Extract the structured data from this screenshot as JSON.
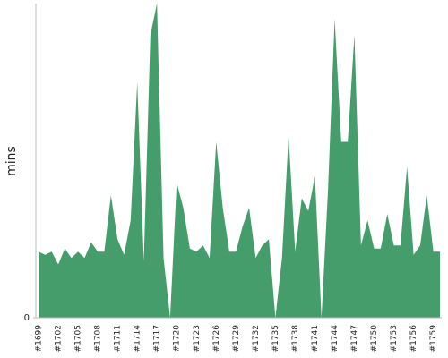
{
  "chart_data": {
    "type": "area",
    "y_label": "mins",
    "categories": [
      "#1699",
      null,
      null,
      "#1702",
      null,
      null,
      "#1705",
      null,
      null,
      "#1708",
      null,
      null,
      "#1711",
      null,
      null,
      "#1714",
      null,
      null,
      "#1717",
      null,
      null,
      "#1720",
      null,
      null,
      "#1723",
      null,
      null,
      "#1726",
      null,
      null,
      "#1729",
      null,
      null,
      "#1732",
      null,
      null,
      "#1735",
      null,
      null,
      "#1738",
      null,
      null,
      "#1741",
      null,
      null,
      "#1744",
      null,
      null,
      "#1747",
      null,
      null,
      "#1750",
      null,
      null,
      "#1753",
      null,
      null,
      "#1756",
      null,
      null,
      "#1759",
      null
    ],
    "values": [
      2.1,
      2.0,
      2.1,
      1.7,
      2.2,
      1.9,
      2.1,
      1.9,
      2.4,
      2.1,
      2.1,
      3.9,
      2.5,
      2.0,
      3.1,
      7.5,
      1.8,
      9.0,
      10.0,
      1.9,
      0,
      4.3,
      3.5,
      2.2,
      2.1,
      2.3,
      1.9,
      5.6,
      3.5,
      2.1,
      2.1,
      2.9,
      3.5,
      1.9,
      2.3,
      2.5,
      0,
      1.9,
      5.8,
      2.1,
      3.8,
      3.4,
      4.5,
      0,
      4.1,
      9.5,
      5.6,
      5.6,
      9.0,
      2.3,
      3.1,
      2.2,
      2.2,
      3.3,
      2.3,
      2.3,
      4.8,
      2.0,
      2.3,
      3.9,
      2.1,
      2.1
    ],
    "color": "#459d6b",
    "ylim": [
      0,
      10
    ],
    "yticks": [
      0
    ],
    "grid": false
  }
}
